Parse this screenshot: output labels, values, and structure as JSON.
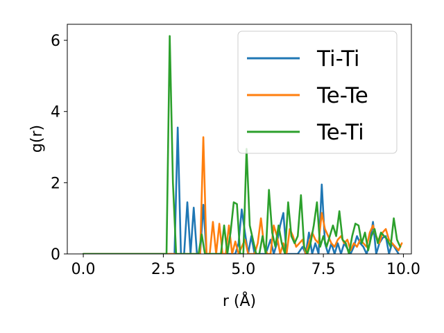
{
  "chart_data": {
    "type": "line",
    "xlabel": "r (Å)",
    "ylabel": "g(r)",
    "xlim": [
      -0.5,
      10.25
    ],
    "ylim": [
      0,
      6.45
    ],
    "xticks": [
      0.0,
      2.5,
      5.0,
      7.5,
      10.0
    ],
    "xtick_labels": [
      "0.0",
      "2.5",
      "5.0",
      "7.5",
      "10.0"
    ],
    "yticks": [
      0,
      2,
      4,
      6
    ],
    "ytick_labels": [
      "0",
      "2",
      "4",
      "6"
    ],
    "grid": false,
    "legend": {
      "placement": "top-right"
    },
    "series": [
      {
        "name": "Ti-Ti",
        "color": "#1f77b4",
        "x": [
          0.0,
          2.6,
          2.85,
          2.95,
          3.05,
          3.15,
          3.25,
          3.35,
          3.45,
          3.55,
          3.65,
          3.75,
          3.85,
          4.0,
          4.4,
          4.75,
          4.85,
          4.95,
          5.05,
          5.15,
          5.25,
          5.35,
          5.7,
          5.85,
          5.95,
          6.05,
          6.15,
          6.25,
          6.35,
          6.45,
          6.55,
          6.7,
          6.85,
          6.95,
          7.05,
          7.15,
          7.25,
          7.35,
          7.45,
          7.55,
          7.65,
          7.75,
          7.85,
          7.95,
          8.05,
          8.15,
          8.35,
          8.45,
          8.55,
          8.65,
          8.75,
          8.85,
          8.95,
          9.05,
          9.15,
          9.25,
          9.35,
          9.45,
          9.55,
          9.65,
          9.75,
          9.85
        ],
        "values": [
          0,
          0,
          0,
          3.55,
          0,
          0,
          1.45,
          0,
          1.3,
          0,
          0,
          1.38,
          0,
          0,
          0,
          0,
          0.3,
          1.25,
          0.6,
          0,
          0.5,
          0,
          0,
          0.4,
          0,
          0.3,
          0.8,
          1.15,
          0,
          0,
          0,
          0,
          0.2,
          0,
          0.6,
          0,
          0.3,
          0,
          1.95,
          0.3,
          0,
          0.3,
          0,
          0.3,
          0,
          0.3,
          0,
          0.2,
          0.5,
          0.3,
          0.2,
          0,
          0.3,
          0.9,
          0,
          0.3,
          0.45,
          0.5,
          0,
          0.3,
          0.15,
          0
        ]
      },
      {
        "name": "Te-Te",
        "color": "#ff7f0e",
        "x": [
          0.0,
          3.4,
          3.55,
          3.65,
          3.75,
          3.85,
          3.95,
          4.05,
          4.15,
          4.25,
          4.35,
          4.45,
          4.55,
          4.65,
          4.75,
          4.85,
          4.95,
          5.05,
          5.15,
          5.25,
          5.35,
          5.45,
          5.55,
          5.65,
          5.75,
          5.85,
          5.95,
          6.05,
          6.15,
          6.25,
          6.35,
          6.45,
          6.55,
          6.65,
          6.75,
          6.85,
          6.95,
          7.05,
          7.15,
          7.25,
          7.35,
          7.45,
          7.55,
          7.65,
          7.75,
          7.85,
          7.95,
          8.05,
          8.15,
          8.25,
          8.35,
          8.45,
          8.55,
          8.65,
          8.75,
          8.85,
          8.95,
          9.05,
          9.15,
          9.25,
          9.35,
          9.45,
          9.55,
          9.65,
          9.75,
          9.85,
          9.95
        ],
        "values": [
          0,
          0,
          0,
          0,
          3.28,
          0,
          0,
          0.9,
          0,
          0.85,
          0,
          0,
          0.8,
          0,
          0.35,
          0,
          0.2,
          0.4,
          0,
          0,
          0,
          0.3,
          1.0,
          0.2,
          0,
          0,
          0.8,
          0.5,
          0,
          0.3,
          0,
          0.7,
          0.5,
          0.2,
          0.3,
          0.4,
          0,
          0.3,
          0.6,
          0.4,
          0.3,
          1.15,
          0.7,
          0.5,
          0.3,
          0.2,
          0.4,
          0.5,
          0.3,
          0.4,
          0.1,
          0.3,
          0.2,
          0.4,
          0.3,
          0.2,
          0.6,
          0.8,
          0.5,
          0.3,
          0.6,
          0.7,
          0.4,
          0.3,
          0.2,
          0.1,
          0.3
        ]
      },
      {
        "name": "Te-Ti",
        "color": "#2ca02c",
        "x": [
          0.0,
          2.6,
          2.7,
          2.8,
          2.9,
          3.0,
          3.6,
          3.7,
          3.8,
          4.3,
          4.4,
          4.5,
          4.6,
          4.7,
          4.8,
          4.9,
          5.0,
          5.1,
          5.2,
          5.3,
          5.4,
          5.5,
          5.6,
          5.7,
          5.8,
          5.9,
          6.0,
          6.1,
          6.2,
          6.3,
          6.4,
          6.5,
          6.6,
          6.7,
          6.8,
          6.9,
          7.0,
          7.1,
          7.2,
          7.3,
          7.4,
          7.5,
          7.6,
          7.7,
          7.8,
          7.9,
          8.0,
          8.1,
          8.2,
          8.3,
          8.4,
          8.5,
          8.6,
          8.7,
          8.8,
          8.9,
          9.0,
          9.1,
          9.2,
          9.3,
          9.4,
          9.5,
          9.6,
          9.7,
          9.8,
          9.9
        ],
        "values": [
          0,
          0,
          6.12,
          2.0,
          0,
          0,
          0,
          0.55,
          0,
          0,
          0.8,
          0,
          0.6,
          1.45,
          1.4,
          0,
          0,
          2.95,
          0.8,
          0.4,
          0,
          0,
          0.5,
          0,
          1.8,
          0.6,
          0.2,
          0.8,
          0.3,
          0,
          1.45,
          0.5,
          0.3,
          0.5,
          1.65,
          0.2,
          0,
          0.3,
          0.8,
          1.45,
          0.2,
          0.5,
          0.2,
          0.5,
          0.8,
          0.5,
          1.2,
          0.4,
          0.3,
          0,
          0.5,
          0.85,
          0.8,
          0.3,
          0.6,
          0.1,
          0.5,
          0.7,
          0.3,
          0.6,
          0.5,
          0.4,
          0.2,
          1.0,
          0.4,
          0.2
        ]
      }
    ]
  }
}
